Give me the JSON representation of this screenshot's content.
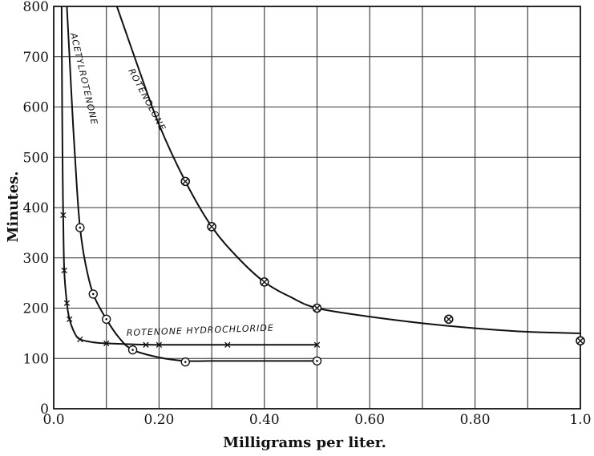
{
  "chart_data": {
    "type": "line",
    "xlabel": "Milligrams per liter.",
    "ylabel": "Minutes.",
    "xlim": [
      0,
      1.0
    ],
    "ylim": [
      0,
      800
    ],
    "x_ticks": [
      "0.0",
      "0.20",
      "0.40",
      "0.60",
      "0.80",
      "1.0"
    ],
    "y_ticks": [
      "0",
      "100",
      "200",
      "300",
      "400",
      "500",
      "600",
      "700",
      "800"
    ],
    "x_tick_values": [
      0,
      0.2,
      0.4,
      0.6,
      0.8,
      1.0
    ],
    "y_tick_values": [
      0,
      100,
      200,
      300,
      400,
      500,
      600,
      700,
      800
    ],
    "grid": true,
    "series": [
      {
        "name": "ROTENOLONE",
        "marker": "circled-x",
        "curve": [
          [
            0.12,
            800
          ],
          [
            0.16,
            680
          ],
          [
            0.2,
            565
          ],
          [
            0.25,
            452
          ],
          [
            0.3,
            362
          ],
          [
            0.35,
            300
          ],
          [
            0.4,
            252
          ],
          [
            0.45,
            222
          ],
          [
            0.5,
            200
          ],
          [
            0.6,
            183
          ],
          [
            0.7,
            170
          ],
          [
            0.8,
            160
          ],
          [
            0.9,
            153
          ],
          [
            1.0,
            150
          ]
        ],
        "points": [
          [
            0.25,
            452
          ],
          [
            0.3,
            362
          ],
          [
            0.4,
            252
          ],
          [
            0.5,
            200
          ],
          [
            0.75,
            178
          ],
          [
            1.0,
            135
          ]
        ]
      },
      {
        "name": "ACETYLROTENONE",
        "marker": "circle-dot",
        "curve": [
          [
            0.025,
            800
          ],
          [
            0.03,
            700
          ],
          [
            0.037,
            560
          ],
          [
            0.044,
            440
          ],
          [
            0.05,
            360
          ],
          [
            0.06,
            290
          ],
          [
            0.075,
            228
          ],
          [
            0.1,
            178
          ],
          [
            0.125,
            140
          ],
          [
            0.15,
            117
          ],
          [
            0.2,
            102
          ],
          [
            0.25,
            95
          ],
          [
            0.3,
            95
          ],
          [
            0.4,
            95
          ],
          [
            0.5,
            95
          ]
        ],
        "points": [
          [
            0.05,
            360
          ],
          [
            0.075,
            228
          ],
          [
            0.1,
            178
          ],
          [
            0.15,
            117
          ],
          [
            0.25,
            93
          ],
          [
            0.5,
            95
          ]
        ]
      },
      {
        "name": "ROTENONE HYDROCHLORIDE",
        "marker": "x",
        "curve": [
          [
            0.015,
            800
          ],
          [
            0.016,
            600
          ],
          [
            0.017,
            470
          ],
          [
            0.018,
            385
          ],
          [
            0.02,
            275
          ],
          [
            0.025,
            210
          ],
          [
            0.03,
            178
          ],
          [
            0.04,
            150
          ],
          [
            0.05,
            138
          ],
          [
            0.075,
            132
          ],
          [
            0.1,
            130
          ],
          [
            0.15,
            128
          ],
          [
            0.2,
            127
          ],
          [
            0.33,
            127
          ],
          [
            0.5,
            127
          ]
        ],
        "points": [
          [
            0.018,
            385
          ],
          [
            0.02,
            275
          ],
          [
            0.025,
            210
          ],
          [
            0.03,
            178
          ],
          [
            0.05,
            138
          ],
          [
            0.1,
            130
          ],
          [
            0.175,
            127
          ],
          [
            0.2,
            127
          ],
          [
            0.33,
            127
          ],
          [
            0.5,
            127
          ]
        ]
      }
    ]
  }
}
